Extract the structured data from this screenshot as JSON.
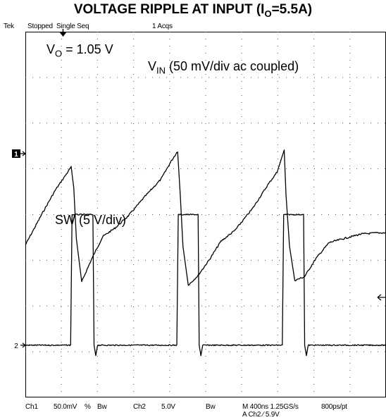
{
  "title": {
    "prefix": "VOLTAGE RIPPLE AT INPUT (I",
    "sub": "O",
    "suffix": "=5.5A)"
  },
  "scope_status": {
    "brand": "Tek",
    "state": "Stopped",
    "mode": "Single Seq",
    "acqs": "1 Acqs"
  },
  "annotations": {
    "vo_label": "V",
    "vo_sub": "O",
    "vo_value": " = 1.05 V",
    "vin_label": "V",
    "vin_sub": "IN",
    "vin_desc": " (50 mV/div ac coupled)",
    "sw": "SW (5 V/div)"
  },
  "channel_markers": {
    "ch1": "1",
    "ch2": "2"
  },
  "settings": {
    "ch1_label": "Ch1",
    "ch1_scale": "50.0mV",
    "ch1_coupling": "%",
    "ch1_bw": "Bw",
    "ch2_label": "Ch2",
    "ch2_scale": "5.0V",
    "ch2_bw": "Bw",
    "timebase": "M 400ns 1.25GS/s",
    "resolution": "800ps/pt",
    "trigger": "A Ch2 ⁄ 5.9V"
  },
  "chart_data": {
    "type": "line",
    "title": "VOLTAGE RIPPLE AT INPUT (IO=5.5A)",
    "xlabel": "",
    "ylabel": "",
    "x_unit": "s",
    "xlim": [
      0,
      4e-06
    ],
    "grid": true,
    "series": [
      {
        "name": "VIN (50 mV/div ac coupled)",
        "unit": "V",
        "ylim": [
          -0.1,
          0.05
        ],
        "x": [
          0,
          1.95e-07,
          3.32e-07,
          5.08e-07,
          5.37e-07,
          5.66e-07,
          6.25e-07,
          7.32e-07,
          8.59e-07,
          9.96e-07,
          1.143e-06,
          1.328e-06,
          1.504e-06,
          1.611e-06,
          1.689e-06,
          1.719e-06,
          1.748e-06,
          1.807e-06,
          1.914e-06,
          2.041e-06,
          2.168e-06,
          2.324e-06,
          2.52e-06,
          2.695e-06,
          2.793e-06,
          2.871e-06,
          2.891e-06,
          2.93e-06,
          2.988e-06,
          3.096e-06,
          3.223e-06,
          3.369e-06,
          3.516e-06,
          3.721e-06,
          3.896e-06,
          4e-06
        ],
        "y": [
          -0.0375,
          -0.024,
          -0.015,
          -0.0055,
          -0.014,
          -0.035,
          -0.0525,
          -0.0435,
          -0.034,
          -0.0305,
          -0.0255,
          -0.0175,
          -0.0105,
          -0.0035,
          0.001,
          -0.0175,
          -0.038,
          -0.054,
          -0.05,
          -0.0435,
          -0.036,
          -0.0315,
          -0.0225,
          -0.0125,
          -0.0075,
          0.0015,
          -0.017,
          -0.038,
          -0.052,
          -0.0505,
          -0.043,
          -0.0365,
          -0.035,
          -0.033,
          -0.0325,
          -0.0325
        ]
      },
      {
        "name": "SW (5 V/div)",
        "unit": "V",
        "ylim": [
          -5,
          30
        ],
        "x": [
          0,
          5.02e-07,
          5.18e-07,
          5.27e-07,
          7.49e-07,
          7.62e-07,
          7.81e-07,
          8.01e-07,
          1.68e-06,
          1.696e-06,
          1.705e-06,
          1.916e-06,
          1.928e-06,
          1.947e-06,
          1.967e-06,
          2.85e-06,
          2.865e-06,
          2.875e-06,
          3.086e-06,
          3.098e-06,
          3.117e-06,
          3.137e-06,
          4e-06
        ],
        "y": [
          0,
          0,
          12.5,
          12.5,
          12.5,
          0,
          -1,
          0,
          0,
          12.5,
          12.5,
          12.5,
          0,
          -1,
          0,
          0,
          12.5,
          12.5,
          12.5,
          0,
          -1,
          0,
          0
        ]
      }
    ]
  }
}
